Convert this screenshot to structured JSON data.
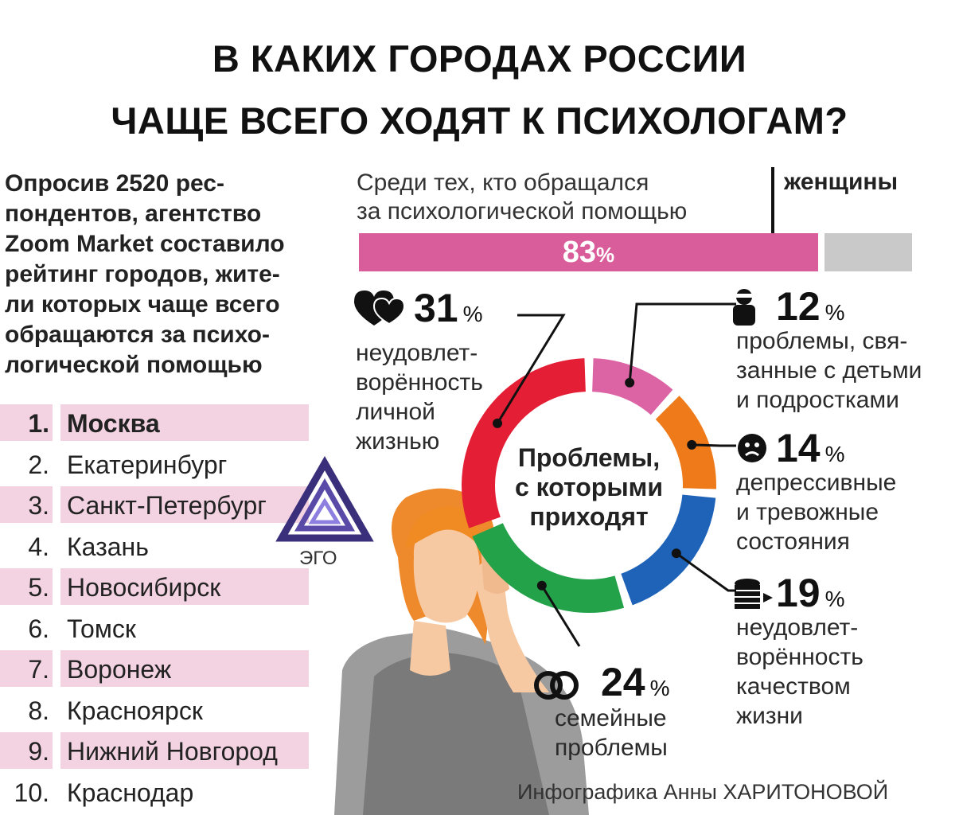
{
  "title": {
    "line1": "В КАКИХ ГОРОДАХ РОССИИ",
    "line2": "ЧАЩЕ ВСЕГО ХОДЯТ К ПСИХОЛОГАМ?"
  },
  "intro": "Опросив 2520 рес-\nпондентов, агентство\nZoom Market составило\nрейтинг городов, жите-\nли которых чаще всего\nобращаются за психо-\nлогической помощью",
  "ranking": [
    {
      "rank": "1.",
      "city": "Москва"
    },
    {
      "rank": "2.",
      "city": "Екатеринбург"
    },
    {
      "rank": "3.",
      "city": "Санкт-Петербург"
    },
    {
      "rank": "4.",
      "city": "Казань"
    },
    {
      "rank": "5.",
      "city": "Новосибирск"
    },
    {
      "rank": "6.",
      "city": "Томск"
    },
    {
      "rank": "7.",
      "city": "Воронеж"
    },
    {
      "rank": "8.",
      "city": "Красноярск"
    },
    {
      "rank": "9.",
      "city": "Нижний Новгород"
    },
    {
      "rank": "10.",
      "city": "Краснодар"
    }
  ],
  "women": {
    "text": "Среди тех, кто обращался\nза психологической помощью",
    "label": "женщины",
    "value_text": "83",
    "percent_sign": "%",
    "value": 83,
    "bar_color": "#d95d9a",
    "track_color": "#c9c9c9"
  },
  "logo": {
    "text": "ЭГО"
  },
  "credit": "Инфографика Анны ХАРИТОНОВОЙ",
  "chart_data": {
    "type": "pie",
    "center_label": "Проблемы,\nс которыми\nприходят",
    "slices": [
      {
        "value": 12,
        "value_text": "12",
        "label": "проблемы, свя-\nзанные с детьми\nи подростками",
        "color": "#dc64a4",
        "icon": "parent-child-icon"
      },
      {
        "value": 14,
        "value_text": "14",
        "label": "депрессивные\nи тревожные\nсостояния",
        "color": "#ef7a1a",
        "icon": "sad-face-icon"
      },
      {
        "value": 19,
        "value_text": "19",
        "label": "неудовлет-\nворённость\nкачеством\nжизни",
        "color": "#1e63b8",
        "icon": "coin-stack-icon"
      },
      {
        "value": 24,
        "value_text": "24",
        "label": "семейные\nпроблемы",
        "color": "#23a24a",
        "icon": "rings-icon"
      },
      {
        "value": 31,
        "value_text": "31",
        "label": "неудовлет-\nворённость\nличной\nжизнью",
        "color": "#e31e35",
        "icon": "hearts-icon"
      }
    ],
    "percent_sign": "%"
  }
}
